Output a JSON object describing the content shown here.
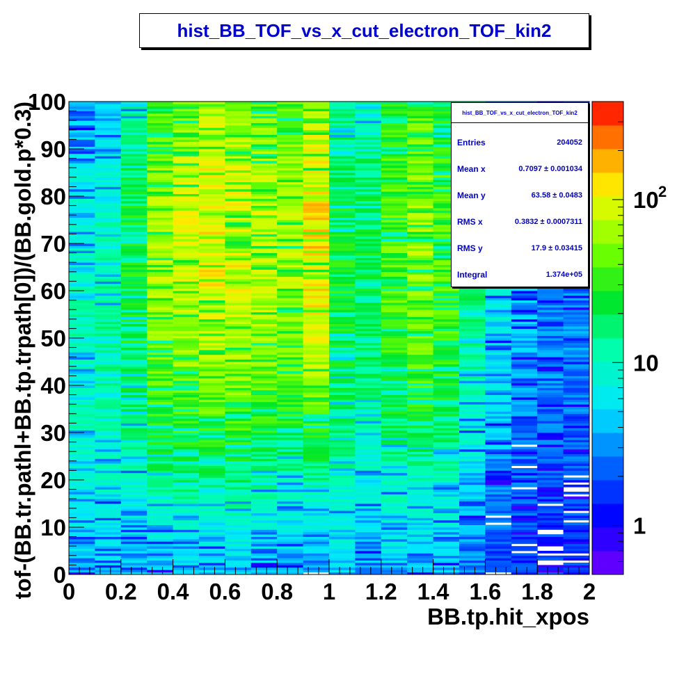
{
  "chart_data": {
    "type": "heatmap",
    "title": "hist_BB_TOF_vs_x_cut_electron_TOF_kin2",
    "xlabel": "BB.tp.hit_xpos",
    "ylabel": "tof-(BB.tr.pathl+BB.tp.trpath[0])/(BB.gold.p*0.3)",
    "xlim": [
      0,
      2
    ],
    "ylim": [
      0,
      100
    ],
    "x_ticks": [
      "0",
      "0.2",
      "0.4",
      "0.6",
      "0.8",
      "1",
      "1.2",
      "1.4",
      "1.6",
      "1.8",
      "2"
    ],
    "y_ticks": [
      "0",
      "10",
      "20",
      "30",
      "40",
      "50",
      "60",
      "70",
      "80",
      "90",
      "100"
    ],
    "color_scale": "log",
    "color_ticks": [
      {
        "value": 1,
        "label": "1",
        "exp": ""
      },
      {
        "value": 10,
        "label": "10",
        "exp": ""
      },
      {
        "value": 100,
        "label": "10",
        "exp": "2"
      }
    ],
    "color_range": [
      0.5,
      400
    ],
    "grid": false,
    "hot_region": {
      "x": [
        0.3,
        1.0
      ],
      "y": [
        60,
        80
      ],
      "peak_count": 150
    },
    "x_columns": [
      0.05,
      0.15,
      0.25,
      0.35,
      0.45,
      0.55,
      0.65,
      0.75,
      0.85,
      0.95,
      1.05,
      1.15,
      1.25,
      1.35,
      1.45,
      1.55,
      1.65,
      1.75,
      1.85,
      1.95
    ],
    "column_peak_counts": [
      10,
      12,
      25,
      70,
      90,
      110,
      100,
      80,
      70,
      130,
      25,
      20,
      40,
      60,
      40,
      15,
      6,
      3,
      2,
      2
    ],
    "column_peak_y": [
      50,
      52,
      62,
      68,
      70,
      72,
      70,
      70,
      70,
      72,
      62,
      66,
      70,
      72,
      68,
      68,
      66,
      64,
      62,
      62
    ],
    "column_spread_y": [
      30,
      30,
      28,
      26,
      26,
      26,
      26,
      26,
      26,
      24,
      30,
      30,
      30,
      28,
      28,
      30,
      30,
      30,
      30,
      30
    ]
  },
  "stats": {
    "title": "hist_BB_TOF_vs_x_cut_electron_TOF_kin2",
    "rows": [
      {
        "label": "Entries",
        "value": "204052"
      },
      {
        "label": "Mean x",
        "value": "0.7097 ± 0.001034"
      },
      {
        "label": "Mean y",
        "value": "63.58 ± 0.0483"
      },
      {
        "label": "RMS x",
        "value": "0.3832 ± 0.0007311"
      },
      {
        "label": "RMS y",
        "value": "17.9 ± 0.03415"
      },
      {
        "label": "Integral",
        "value": "1.374e+05"
      }
    ]
  }
}
